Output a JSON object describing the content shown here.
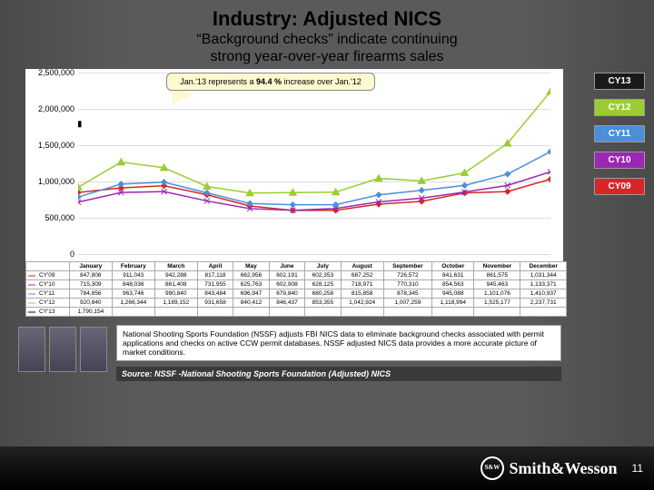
{
  "title": "Industry: Adjusted NICS",
  "subtitle1": "“Background checks” indicate continuing",
  "subtitle2": "strong year-over-year firearms sales",
  "callout_pre": "Jan.'13  represents a ",
  "callout_bold": "94.4 %",
  "callout_post": " increase over  Jan.'12",
  "chart": {
    "type": "line",
    "months": [
      "January",
      "February",
      "March",
      "April",
      "May",
      "June",
      "July",
      "August",
      "September",
      "October",
      "November",
      "December"
    ],
    "ylim": [
      0,
      2500000
    ],
    "ytick_step": 500000,
    "ytick_labels": [
      "0",
      "500,000",
      "1,000,000",
      "1,500,000",
      "2,000,000",
      "2,500,000"
    ],
    "grid_color": "#dddddd",
    "background_color": "#ffffff",
    "series": [
      {
        "name": "CY'09",
        "label": "CY09",
        "color": "#d62728",
        "legend_bg": "#d62728",
        "marker": "diamond",
        "values": [
          847808,
          911043,
          942288,
          817118,
          662956,
          602191,
          602353,
          687252,
          726572,
          841631,
          861575,
          1031344
        ]
      },
      {
        "name": "CY'10",
        "label": "CY10",
        "color": "#9c27b0",
        "legend_bg": "#9c27b0",
        "marker": "x",
        "values": [
          715309,
          848036,
          861408,
          731955,
          625763,
          602908,
          628125,
          718971,
          770310,
          854563,
          945463,
          1133371
        ]
      },
      {
        "name": "CY'11",
        "label": "CY11",
        "color": "#4a90d9",
        "legend_bg": "#4a90d9",
        "marker": "star",
        "values": [
          784856,
          963746,
          990840,
          843484,
          696947,
          679840,
          680258,
          815858,
          878345,
          945088,
          1101076,
          1410937
        ]
      },
      {
        "name": "CY'12",
        "label": "CY12",
        "color": "#9acd32",
        "legend_bg": "#9acd32",
        "marker": "triangle",
        "values": [
          920840,
          1266344,
          1189152,
          931658,
          840412,
          846437,
          853355,
          1042924,
          1007259,
          1118994,
          1525177,
          2237731
        ]
      },
      {
        "name": "CY'13",
        "label": "CY13",
        "color": "#000000",
        "legend_bg": "#1a1a1a",
        "marker": "square",
        "values": [
          1790154
        ]
      }
    ],
    "legend_order": [
      "CY13",
      "CY12",
      "CY11",
      "CY10",
      "CY09"
    ]
  },
  "footnote": "National Shooting Sports Foundation (NSSF) adjusts FBI NICS data to eliminate background checks associated with permit applications and checks on active CCW permit databases. NSSF adjusted NICS data provides a more accurate picture of market conditions.",
  "source": "Source: NSSF -National Shooting Sports Foundation (Adjusted) NICS",
  "brand": "Smith&Wesson",
  "page_number": "11"
}
